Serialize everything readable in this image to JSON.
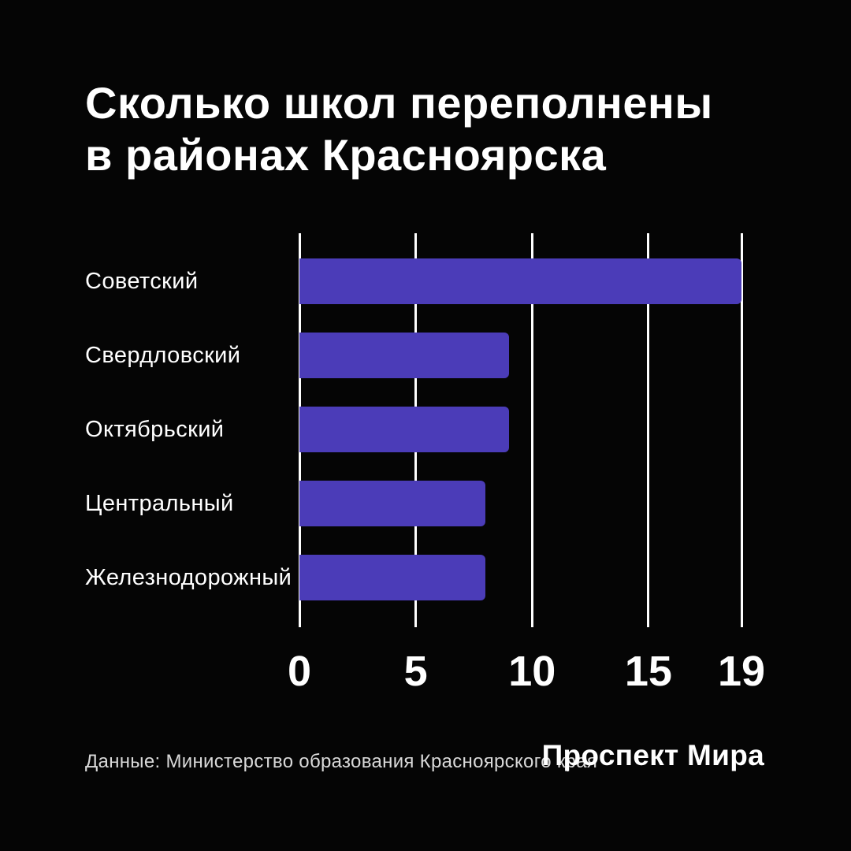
{
  "header": {
    "title_lines": [
      "Сколько школ переполнены",
      "в районах Красноярска"
    ]
  },
  "chart_data": {
    "type": "bar",
    "orientation": "horizontal",
    "title": "Сколько школ переполнены в районах Красноярска",
    "categories": [
      "Советский",
      "Свердловский",
      "Октябрьский",
      "Центральный",
      "Железнодорожный"
    ],
    "values": [
      19,
      9,
      9,
      8,
      8
    ],
    "x_ticks": [
      0,
      5,
      10,
      15,
      19
    ],
    "xlim": [
      0,
      19
    ],
    "grid": true,
    "legend": false,
    "bar_color": "#4B3CB8",
    "gridline_color": "#ffffff"
  },
  "footer": {
    "source": "Данные: Министерство образования Красноярского края",
    "brand": "Проспект Мира"
  },
  "colors": {
    "background": "#050505",
    "text": "#ffffff",
    "muted_text": "#d9d9d9"
  }
}
